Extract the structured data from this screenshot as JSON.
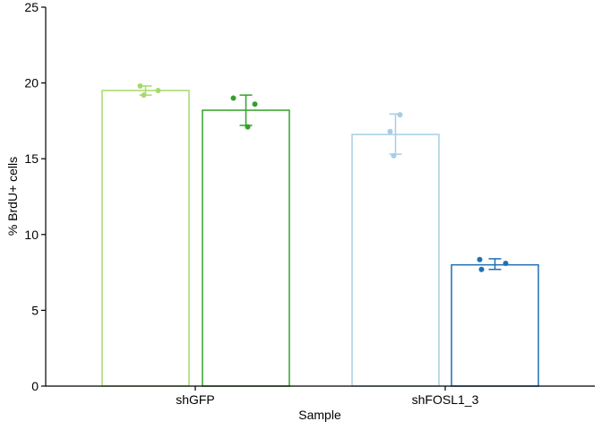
{
  "chart_data": {
    "type": "bar",
    "title": "",
    "xlabel": "Sample",
    "ylabel": "% BrdU+ cells",
    "ylim": [
      0,
      25
    ],
    "yticks": [
      0,
      5,
      10,
      15,
      20,
      25
    ],
    "categories": [
      "shGFP",
      "shFOSL1_3"
    ],
    "grid": false,
    "legend": "none",
    "bars": [
      {
        "category": "shGFP",
        "value": 19.5,
        "err_low": 19.2,
        "err_high": 19.8,
        "color": "#a6d96a",
        "points": [
          19.8,
          19.2,
          19.5
        ]
      },
      {
        "category": "shGFP",
        "value": 18.2,
        "err_low": 17.2,
        "err_high": 19.2,
        "color": "#33a02c",
        "points": [
          19.0,
          17.1,
          18.6
        ]
      },
      {
        "category": "shFOSL1_3",
        "value": 16.6,
        "err_low": 15.3,
        "err_high": 17.95,
        "color": "#a6cee3",
        "points": [
          16.8,
          15.2,
          17.9
        ]
      },
      {
        "category": "shFOSL1_3",
        "value": 8.0,
        "err_low": 7.7,
        "err_high": 8.4,
        "color": "#1f6fb4",
        "points": [
          8.35,
          7.7,
          8.1
        ]
      }
    ]
  }
}
